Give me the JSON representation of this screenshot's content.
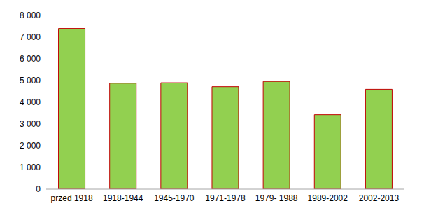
{
  "chart_data": {
    "type": "bar",
    "categories": [
      "przed 1918",
      "1918-1944",
      "1945-1970",
      "1971-1978",
      "1979- 1988",
      "1989-2002",
      "2002-2013"
    ],
    "values": [
      7400,
      4880,
      4900,
      4720,
      4960,
      3430,
      4600
    ],
    "color": "#92d050",
    "ylim": [
      0,
      8000
    ],
    "yticks": [
      0,
      {
        "value": 1000,
        "label": "1 000"
      },
      {
        "value": 2000,
        "label": "2 000"
      },
      {
        "value": 3000,
        "label": "3 000"
      },
      {
        "value": 4000,
        "label": "4 000"
      },
      {
        "value": 5000,
        "label": "5 000"
      },
      {
        "value": 6000,
        "label": "6 000"
      },
      {
        "value": 7000,
        "label": "7 000"
      },
      {
        "value": 8000,
        "label": "8 000"
      }
    ],
    "grid": false
  }
}
